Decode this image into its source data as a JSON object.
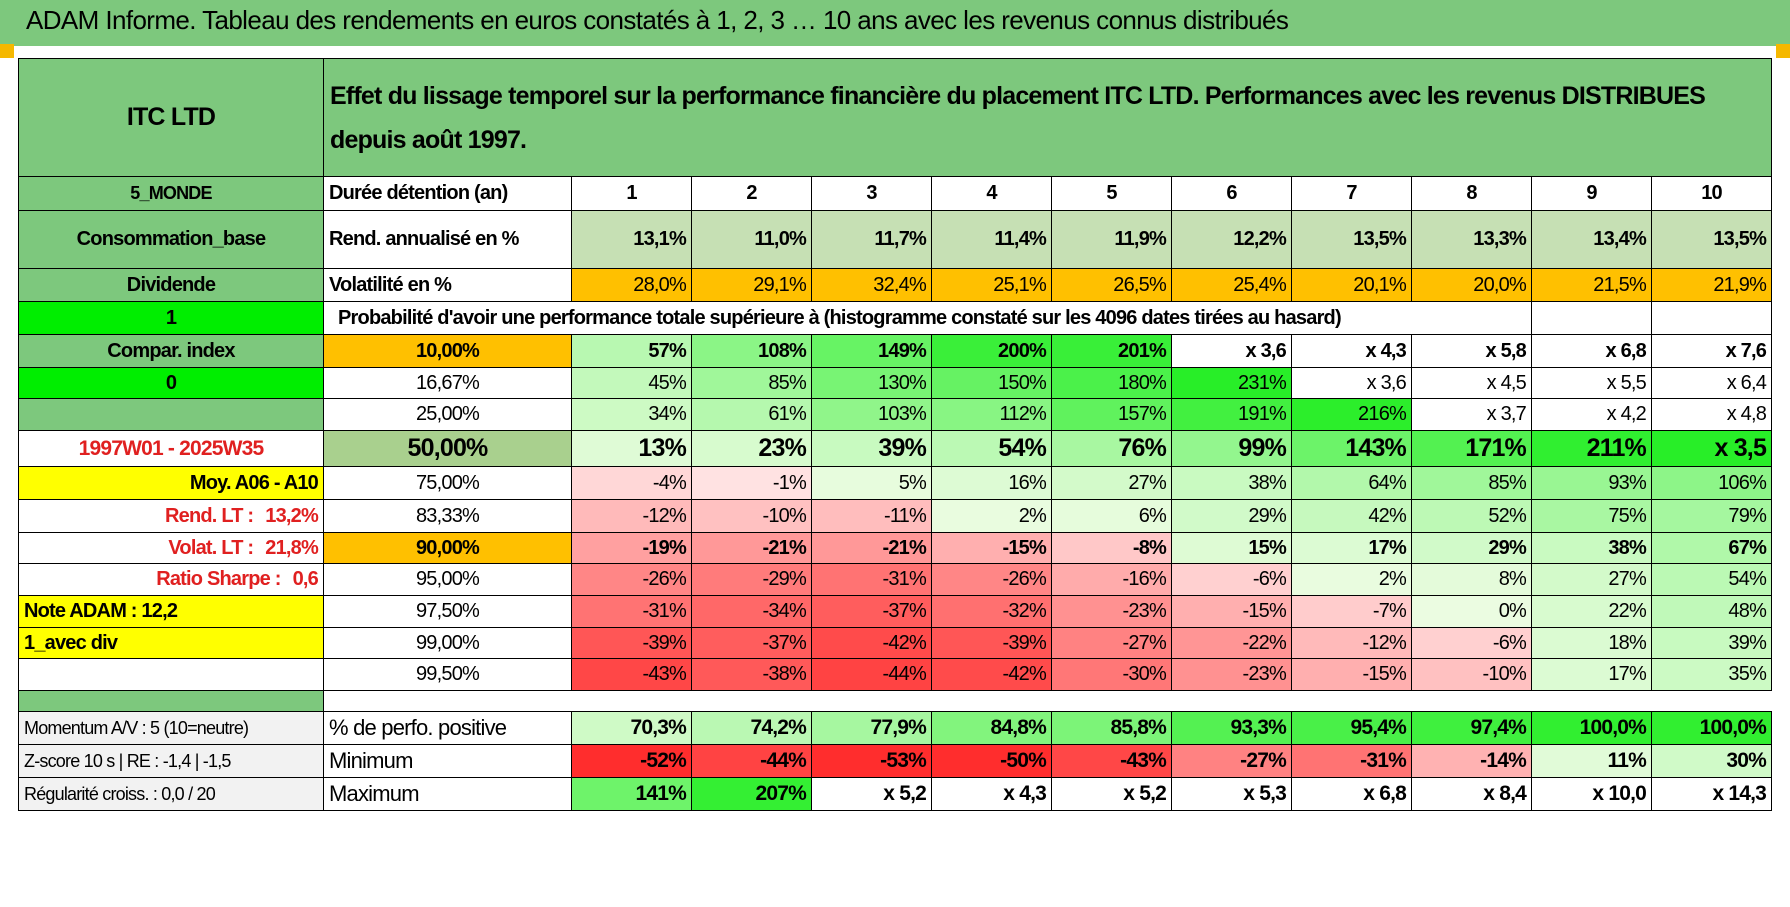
{
  "title": "ADAM Informe. Tableau des rendements en euros constatés à 1, 2, 3 … 10 ans avec les revenus connus distribués",
  "header": {
    "fund": "ITC LTD",
    "description": "Effet du lissage temporel sur la performance financière du placement ITC LTD. Performances avec les revenus DISTRIBUES depuis août 1997."
  },
  "side": {
    "region": "5_MONDE",
    "sector": "Consommation_base",
    "type": "Dividende",
    "flag1": "1",
    "compar_label": "Compar. index",
    "flag0": "0",
    "period": "1997W01 - 2025W35",
    "moy": "Moy. A06 - A10",
    "rend_lt_label": "Rend. LT :",
    "rend_lt_value": "13,2%",
    "volat_lt_label": "Volat. LT :",
    "volat_lt_value": "21,8%",
    "sharpe_label": "Ratio Sharpe :",
    "sharpe_value": "0,6",
    "note": "Note ADAM : 12,2",
    "div_label": "1_avec div"
  },
  "colors": {
    "header_green": "#7dc87d",
    "orange": "#ffc000",
    "yellow": "#ffff00",
    "bright_green": "#00ee00",
    "text_red": "#e02020"
  },
  "table": {
    "duration_label": "Durée détention (an)",
    "years": [
      "1",
      "2",
      "3",
      "4",
      "5",
      "6",
      "7",
      "8",
      "9",
      "10"
    ],
    "rend_label": "Rend. annualisé en %",
    "rend": [
      "13,1%",
      "11,0%",
      "11,7%",
      "11,4%",
      "11,9%",
      "12,2%",
      "13,5%",
      "13,3%",
      "13,4%",
      "13,5%"
    ],
    "vol_label": "Volatilité en %",
    "vol": [
      "28,0%",
      "29,1%",
      "32,4%",
      "25,1%",
      "26,5%",
      "25,4%",
      "20,1%",
      "20,0%",
      "21,5%",
      "21,9%"
    ],
    "prob_title": "Probabilité d'avoir une performance totale supérieure à (histogramme constaté sur les 4096 dates tirées au hasard)",
    "prob_rows": [
      {
        "p": "10,00%",
        "v": [
          "57%",
          "108%",
          "149%",
          "200%",
          "201%",
          "x 3,6",
          "x 4,3",
          "x 5,8",
          "x 6,8",
          "x 7,6"
        ]
      },
      {
        "p": "16,67%",
        "v": [
          "45%",
          "85%",
          "130%",
          "150%",
          "180%",
          "231%",
          "x 3,6",
          "x 4,5",
          "x 5,5",
          "x 6,4"
        ]
      },
      {
        "p": "25,00%",
        "v": [
          "34%",
          "61%",
          "103%",
          "112%",
          "157%",
          "191%",
          "216%",
          "x 3,7",
          "x 4,2",
          "x 4,8"
        ]
      },
      {
        "p": "50,00%",
        "v": [
          "13%",
          "23%",
          "39%",
          "54%",
          "76%",
          "99%",
          "143%",
          "171%",
          "211%",
          "x 3,5"
        ]
      },
      {
        "p": "75,00%",
        "v": [
          "-4%",
          "-1%",
          "5%",
          "16%",
          "27%",
          "38%",
          "64%",
          "85%",
          "93%",
          "106%"
        ]
      },
      {
        "p": "83,33%",
        "v": [
          "-12%",
          "-10%",
          "-11%",
          "2%",
          "6%",
          "29%",
          "42%",
          "52%",
          "75%",
          "79%"
        ]
      },
      {
        "p": "90,00%",
        "v": [
          "-19%",
          "-21%",
          "-21%",
          "-15%",
          "-8%",
          "15%",
          "17%",
          "29%",
          "38%",
          "67%"
        ]
      },
      {
        "p": "95,00%",
        "v": [
          "-26%",
          "-29%",
          "-31%",
          "-26%",
          "-16%",
          "-6%",
          "2%",
          "8%",
          "27%",
          "54%"
        ]
      },
      {
        "p": "97,50%",
        "v": [
          "-31%",
          "-34%",
          "-37%",
          "-32%",
          "-23%",
          "-15%",
          "-7%",
          "0%",
          "22%",
          "48%"
        ]
      },
      {
        "p": "99,00%",
        "v": [
          "-39%",
          "-37%",
          "-42%",
          "-39%",
          "-27%",
          "-22%",
          "-12%",
          "-6%",
          "18%",
          "39%"
        ]
      },
      {
        "p": "99,50%",
        "v": [
          "-43%",
          "-38%",
          "-44%",
          "-42%",
          "-30%",
          "-23%",
          "-15%",
          "-10%",
          "17%",
          "35%"
        ]
      }
    ],
    "bottom": [
      {
        "side": "Momentum A/V : 5 (10=neutre)",
        "label": "% de perfo. positive",
        "v": [
          "70,3%",
          "74,2%",
          "77,9%",
          "84,8%",
          "85,8%",
          "93,3%",
          "95,4%",
          "97,4%",
          "100,0%",
          "100,0%"
        ]
      },
      {
        "side": "Z-score 10 s | RE : -1,4 | -1,5",
        "label": "Minimum",
        "v": [
          "-52%",
          "-44%",
          "-53%",
          "-50%",
          "-43%",
          "-27%",
          "-31%",
          "-14%",
          "11%",
          "30%"
        ]
      },
      {
        "side": "Régularité croiss. : 0,0 / 20",
        "label": "Maximum",
        "v": [
          "141%",
          "207%",
          "x 5,2",
          "x 4,3",
          "x 5,2",
          "x 5,3",
          "x 6,8",
          "x 8,4",
          "x 10,0",
          "x 14,3"
        ]
      }
    ]
  }
}
